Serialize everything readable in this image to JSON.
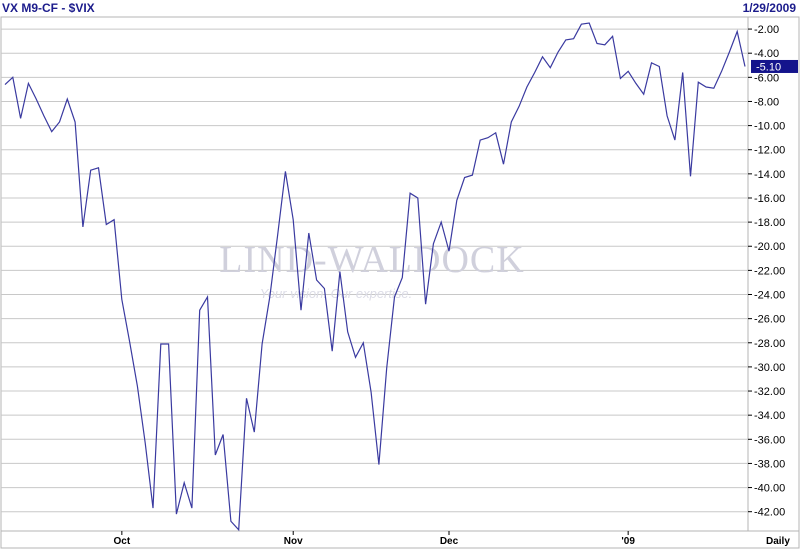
{
  "header": {
    "symbol": "VX M9-CF - $VIX",
    "date": "1/29/2009"
  },
  "watermark": {
    "brand": "LIND-WALDOCK",
    "tagline": "Your vision. Our expertise."
  },
  "last_value_label": "-5.10",
  "periodicity": "Daily",
  "colors": {
    "line": "#3a3aa0",
    "grid": "#c8c8c8",
    "last_value_bg": "#14148c",
    "frame": "#b4b4b4"
  },
  "chart_data": {
    "type": "line",
    "title": "VX M9-CF - $VIX",
    "xlabel": "",
    "ylabel": "",
    "ylim": [
      -43.6,
      -1.0
    ],
    "grid": true,
    "y_ticks": [
      "-2.00",
      "-4.00",
      "-6.00",
      "-8.00",
      "-10.00",
      "-12.00",
      "-14.00",
      "-16.00",
      "-18.00",
      "-20.00",
      "-22.00",
      "-24.00",
      "-26.00",
      "-28.00",
      "-30.00",
      "-32.00",
      "-34.00",
      "-36.00",
      "-38.00",
      "-40.00",
      "-42.00"
    ],
    "x_tick_labels": [
      {
        "label": "Oct",
        "index": 15
      },
      {
        "label": "Nov",
        "index": 37
      },
      {
        "label": "Dec",
        "index": 57
      },
      {
        "label": "'09",
        "index": 80
      }
    ],
    "series": [
      {
        "values": [
          -6.6,
          -6.0,
          -9.4,
          -6.5,
          -7.8,
          -9.2,
          -10.5,
          -9.7,
          -7.8,
          -9.7,
          -18.4,
          -13.7,
          -13.5,
          -18.2,
          -17.8,
          -24.4,
          -27.9,
          -31.6,
          -36.3,
          -41.7,
          -28.1,
          -28.1,
          -42.2,
          -39.6,
          -41.7,
          -25.3,
          -24.2,
          -37.3,
          -35.6,
          -42.8,
          -43.5,
          -32.6,
          -35.4,
          -28.1,
          -24.2,
          -19.1,
          -13.8,
          -17.8,
          -25.3,
          -18.9,
          -22.8,
          -23.5,
          -28.7,
          -22.1,
          -27.1,
          -29.2,
          -28.0,
          -32.1,
          -38.1,
          -30.1,
          -24.2,
          -22.6,
          -15.6,
          -16.0,
          -24.8,
          -19.8,
          -18.0,
          -20.4,
          -16.2,
          -14.3,
          -14.1,
          -11.2,
          -11.0,
          -10.6,
          -13.2,
          -9.7,
          -8.4,
          -6.8,
          -5.6,
          -4.3,
          -5.2,
          -3.9,
          -2.9,
          -2.8,
          -1.6,
          -1.5,
          -3.2,
          -3.3,
          -2.6,
          -6.1,
          -5.5,
          -6.5,
          -7.4,
          -4.8,
          -5.1,
          -9.2,
          -11.2,
          -5.6,
          -14.2,
          -6.4,
          -6.8,
          -6.9,
          -5.5,
          -3.9,
          -2.2,
          -5.1
        ]
      }
    ]
  }
}
